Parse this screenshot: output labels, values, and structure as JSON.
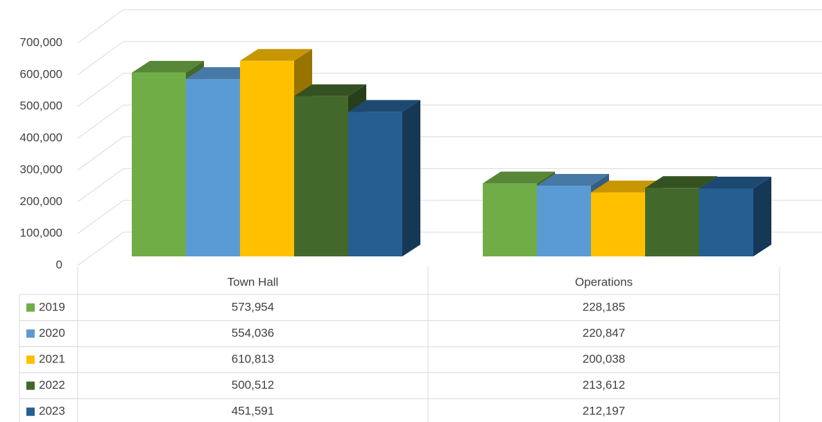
{
  "chart_data": {
    "type": "bar3d",
    "categories": [
      "Town Hall",
      "Operations"
    ],
    "series": [
      {
        "name": "2019",
        "color": "#70ad47",
        "values": [
          573954,
          228185
        ],
        "value_labels": [
          "573,954",
          "228,185"
        ]
      },
      {
        "name": "2020",
        "color": "#5b9bd5",
        "values": [
          554036,
          220847
        ],
        "value_labels": [
          "554,036",
          "220,847"
        ]
      },
      {
        "name": "2021",
        "color": "#ffc000",
        "values": [
          610813,
          200038
        ],
        "value_labels": [
          "610,813",
          "200,038"
        ]
      },
      {
        "name": "2022",
        "color": "#43682b",
        "values": [
          500512,
          213612
        ],
        "value_labels": [
          "500,512",
          "213,612"
        ]
      },
      {
        "name": "2023",
        "color": "#255e91",
        "values": [
          451591,
          212197
        ],
        "value_labels": [
          "451,591",
          "212,197"
        ]
      }
    ],
    "ylim": [
      0,
      700000
    ],
    "yticks": [
      0,
      {
        "value": 100000,
        "label": "100,000"
      },
      {
        "value": 200000,
        "label": "200,000"
      },
      {
        "value": 300000,
        "label": "300,000"
      },
      {
        "value": 400000,
        "label": "400,000"
      },
      {
        "value": 500000,
        "label": "500,000"
      },
      {
        "value": 600000,
        "label": "600,000"
      },
      {
        "value": 700000,
        "label": "700,000"
      }
    ],
    "grid": true,
    "legend": "table"
  }
}
